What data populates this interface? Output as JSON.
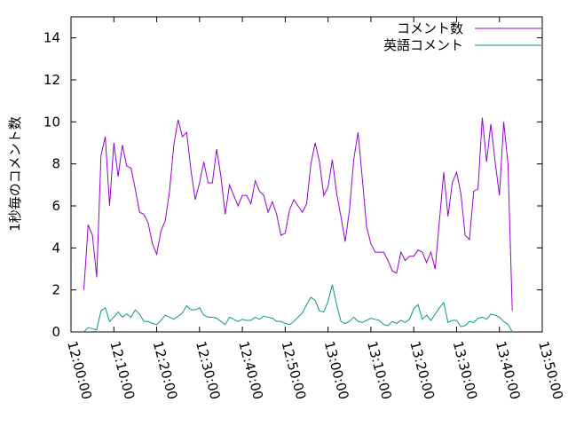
{
  "chart_data": {
    "type": "line",
    "title": "",
    "xlabel": "",
    "ylabel": "1秒毎のコメント数",
    "xlim": [
      "12:00:00",
      "13:50:00"
    ],
    "ylim": [
      0,
      15
    ],
    "x_ticks": [
      "12:00:00",
      "12:10:00",
      "12:20:00",
      "12:30:00",
      "12:40:00",
      "12:50:00",
      "13:00:00",
      "13:10:00",
      "13:20:00",
      "13:30:00",
      "13:40:00",
      "13:50:00"
    ],
    "y_ticks": [
      "0",
      "2",
      "4",
      "6",
      "8",
      "10",
      "12",
      "14"
    ],
    "grid": false,
    "legend_position": "top-right",
    "sample_interval_seconds": 60,
    "x_start": "12:03:00",
    "series": [
      {
        "name": "コメント数",
        "color": "#9400d3",
        "values": [
          2.0,
          5.1,
          4.6,
          2.6,
          8.4,
          9.3,
          6.0,
          9.0,
          7.4,
          8.9,
          7.9,
          7.8,
          6.8,
          5.7,
          5.6,
          5.2,
          4.2,
          3.7,
          4.8,
          5.3,
          6.7,
          8.9,
          10.1,
          9.3,
          9.5,
          7.7,
          6.3,
          7.1,
          8.1,
          7.1,
          7.1,
          8.7,
          7.4,
          5.6,
          7.0,
          6.5,
          6.0,
          6.5,
          6.5,
          6.1,
          7.2,
          6.7,
          6.5,
          5.7,
          6.2,
          5.6,
          4.6,
          4.7,
          5.8,
          6.3,
          6.0,
          5.7,
          6.1,
          8.0,
          9.0,
          8.1,
          6.5,
          6.9,
          8.2,
          6.6,
          5.5,
          4.3,
          5.8,
          8.2,
          9.5,
          7.3,
          5.0,
          4.2,
          3.8,
          3.8,
          3.8,
          3.4,
          2.9,
          2.8,
          3.8,
          3.4,
          3.6,
          3.6,
          3.9,
          3.8,
          3.3,
          3.8,
          3.0,
          5.3,
          7.6,
          5.5,
          7.1,
          7.6,
          6.6,
          4.6,
          4.4,
          6.7,
          6.8,
          10.2,
          8.1,
          9.9,
          8.1,
          6.5,
          10.0,
          8.0,
          1.0
        ]
      },
      {
        "name": "英語コメント",
        "color": "#009e73",
        "values": [
          0.0,
          0.2,
          0.15,
          0.1,
          1.0,
          1.15,
          0.5,
          0.7,
          0.95,
          0.7,
          0.85,
          0.7,
          1.05,
          0.85,
          0.5,
          0.5,
          0.4,
          0.35,
          0.55,
          0.8,
          0.7,
          0.6,
          0.75,
          0.9,
          1.25,
          1.05,
          1.05,
          1.15,
          0.8,
          0.7,
          0.7,
          0.65,
          0.5,
          0.35,
          0.7,
          0.6,
          0.5,
          0.6,
          0.55,
          0.55,
          0.7,
          0.6,
          0.75,
          0.7,
          0.65,
          0.5,
          0.5,
          0.4,
          0.35,
          0.5,
          0.7,
          0.9,
          1.3,
          1.65,
          1.5,
          1.0,
          0.95,
          1.45,
          2.25,
          1.3,
          0.5,
          0.4,
          0.5,
          0.7,
          0.5,
          0.45,
          0.55,
          0.65,
          0.6,
          0.55,
          0.35,
          0.3,
          0.5,
          0.4,
          0.55,
          0.45,
          0.6,
          1.1,
          1.3,
          0.6,
          0.8,
          0.55,
          0.85,
          1.15,
          1.4,
          0.45,
          0.55,
          0.55,
          0.25,
          0.3,
          0.5,
          0.45,
          0.65,
          0.7,
          0.6,
          0.85,
          0.8,
          0.7,
          0.5,
          0.35,
          0.0
        ]
      }
    ]
  }
}
